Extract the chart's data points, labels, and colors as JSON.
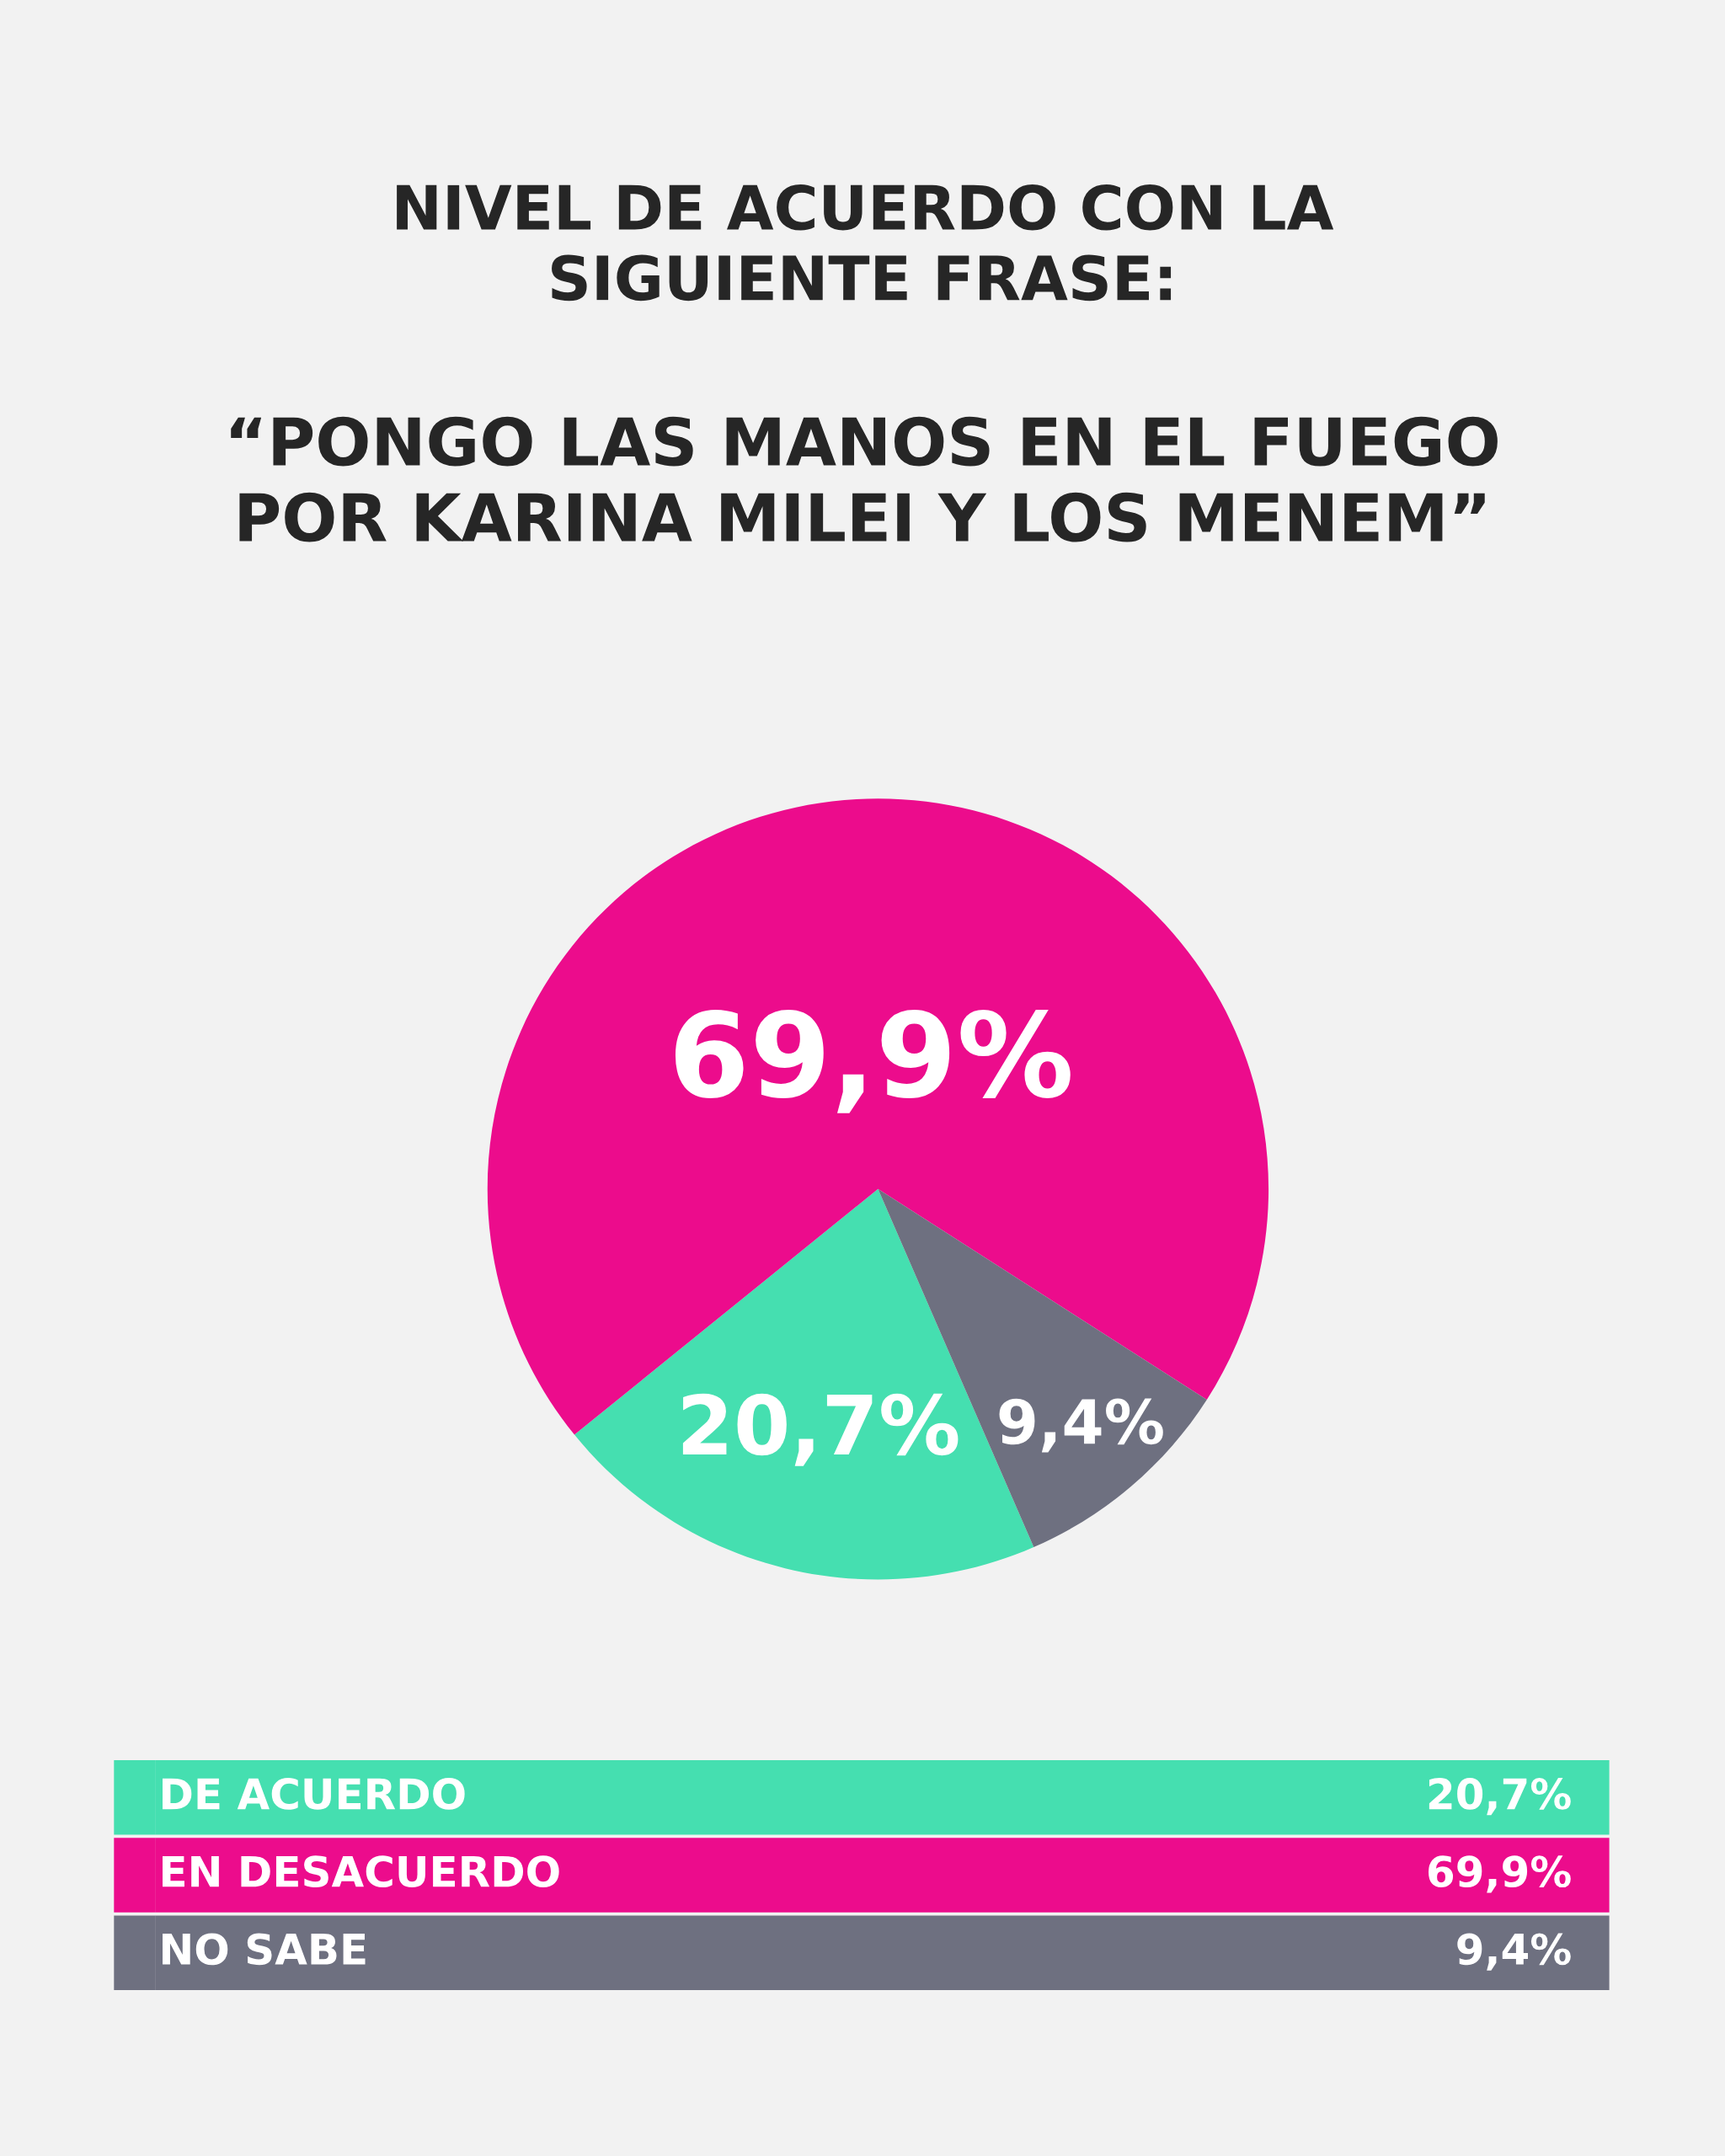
{
  "chart_data": {
    "type": "pie",
    "title": "NIVEL DE ACUERDO CON LA\nSIGUIENTE FRASE:",
    "subtitle": "“PONGO LAS MANOS EN EL FUEGO\nPOR KARINA MILEI Y LOS MENEM”",
    "categories": [
      "DE ACUERDO",
      "EN DESACUERDO",
      "NO SABE"
    ],
    "values": [
      20.7,
      69.9,
      9.4
    ],
    "colors": [
      "#45dfb0",
      "#ec0c8c",
      "#6e7080"
    ],
    "value_labels": [
      "20,7%",
      "69,9%",
      "9,4%"
    ],
    "legend": "bottom"
  }
}
